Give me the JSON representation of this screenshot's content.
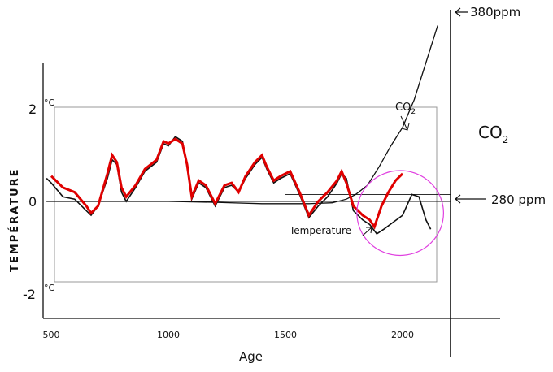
{
  "chart_data": {
    "type": "line",
    "xlabel": "Age",
    "ylabel": "TEMPÉRATURE",
    "xlim": [
      480,
      2400
    ],
    "ylim": [
      -2.4,
      3.0
    ],
    "x_ticks": [
      500,
      1000,
      1500,
      2000
    ],
    "x_tick_labels": [
      "500",
      "1000",
      "1500",
      "2000"
    ],
    "y_tick_labels": [
      {
        "value": 2,
        "label": "2",
        "unit": "°C"
      },
      {
        "value": 0,
        "label": "0",
        "unit": ""
      },
      {
        "value": -2,
        "label": "-2",
        "unit": "°C"
      }
    ],
    "grid": false,
    "series": [
      {
        "name": "Temperature",
        "color": "#111111",
        "x": [
          480,
          500,
          550,
          600,
          650,
          670,
          700,
          740,
          760,
          780,
          800,
          820,
          860,
          900,
          950,
          980,
          1000,
          1030,
          1060,
          1080,
          1100,
          1130,
          1160,
          1200,
          1240,
          1270,
          1300,
          1330,
          1370,
          1400,
          1420,
          1450,
          1480,
          1520,
          1560,
          1600,
          1640,
          1680,
          1720,
          1740,
          1760,
          1790,
          1830,
          1860,
          1890,
          1920,
          1960,
          2000,
          2040,
          2070,
          2100,
          2120
        ],
        "y": [
          0.5,
          0.4,
          0.1,
          0.05,
          -0.2,
          -0.3,
          -0.1,
          0.5,
          0.9,
          0.8,
          0.2,
          0.0,
          0.3,
          0.65,
          0.85,
          1.25,
          1.2,
          1.4,
          1.3,
          0.8,
          0.05,
          0.4,
          0.3,
          -0.1,
          0.3,
          0.35,
          0.2,
          0.5,
          0.8,
          0.95,
          0.7,
          0.4,
          0.5,
          0.6,
          0.15,
          -0.35,
          -0.1,
          0.1,
          0.4,
          0.6,
          0.5,
          -0.2,
          -0.4,
          -0.5,
          -0.7,
          -0.6,
          -0.45,
          -0.3,
          0.15,
          0.1,
          -0.4,
          -0.6
        ]
      },
      {
        "name": "",
        "color": "#e00000",
        "x": [
          500,
          550,
          600,
          650,
          670,
          700,
          740,
          760,
          780,
          800,
          820,
          860,
          900,
          950,
          980,
          1000,
          1030,
          1060,
          1080,
          1100,
          1130,
          1160,
          1200,
          1240,
          1270,
          1300,
          1330,
          1370,
          1400,
          1420,
          1450,
          1480,
          1520,
          1560,
          1600,
          1640,
          1680,
          1720,
          1740,
          1760,
          1790,
          1830,
          1860,
          1880,
          1910,
          1940,
          1970,
          2000
        ],
        "y": [
          0.55,
          0.3,
          0.2,
          -0.1,
          -0.25,
          -0.1,
          0.6,
          1.0,
          0.85,
          0.3,
          0.1,
          0.35,
          0.7,
          0.9,
          1.3,
          1.25,
          1.35,
          1.25,
          0.8,
          0.1,
          0.45,
          0.35,
          -0.05,
          0.35,
          0.4,
          0.2,
          0.55,
          0.85,
          1.0,
          0.75,
          0.45,
          0.55,
          0.65,
          0.2,
          -0.3,
          0.0,
          0.2,
          0.45,
          0.65,
          0.4,
          -0.1,
          -0.3,
          -0.4,
          -0.55,
          -0.1,
          0.2,
          0.45,
          0.6
        ]
      },
      {
        "name": "CO2",
        "color": "#111111",
        "x": [
          480,
          600,
          800,
          1000,
          1200,
          1400,
          1600,
          1700,
          1760,
          1800,
          1850,
          1900,
          1950,
          2000,
          2050,
          2100,
          2150
        ],
        "y": [
          0.0,
          0.0,
          0.0,
          0.0,
          -0.02,
          -0.05,
          -0.05,
          -0.03,
          0.05,
          0.15,
          0.35,
          0.75,
          1.2,
          1.6,
          2.2,
          3.0,
          3.8
        ]
      }
    ],
    "reference_lines": {
      "baseline_zero": 0,
      "co2_280_level": 0.15,
      "co2_380_level": 4.0
    },
    "annotations": {
      "co2_curve_label": "CO",
      "co2_curve_subscript": "2",
      "temperature_label": "Temperature",
      "co2_axis_label": "CO",
      "co2_axis_subscript": "2",
      "co2_high": "380ppm",
      "co2_low": "280 ppm"
    },
    "highlight": {
      "shape": "circle",
      "color": "#e040e0",
      "center_x": 1990,
      "center_y": -0.25,
      "radius_x_data": 185
    }
  }
}
